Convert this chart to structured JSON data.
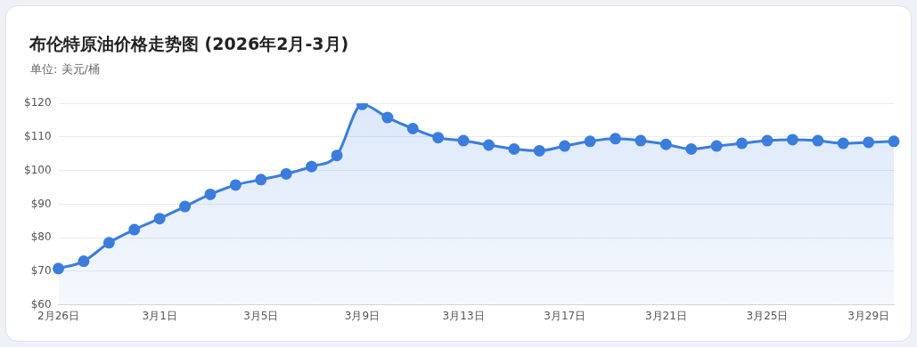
{
  "chart_data": {
    "type": "area",
    "title": "布伦特原油价格走势图 (2026年2月-3月)",
    "subtitle": "单位: 美元/桶",
    "categories": [
      "2月26日",
      null,
      null,
      null,
      "3月1日",
      null,
      null,
      null,
      "3月5日",
      null,
      null,
      null,
      "3月9日",
      null,
      null,
      null,
      "3月13日",
      null,
      null,
      null,
      "3月17日",
      null,
      null,
      null,
      "3月21日",
      null,
      null,
      null,
      "3月25日",
      null,
      null,
      null,
      "3月29日",
      null
    ],
    "series": [
      {
        "color": "#3b7ddd",
        "values": [
          70.8,
          73.0,
          78.5,
          82.4,
          85.7,
          89.3,
          92.9,
          95.7,
          97.3,
          99.0,
          101.2,
          104.5,
          119.7,
          115.8,
          112.5,
          109.8,
          108.9,
          107.6,
          106.4,
          105.9,
          107.3,
          108.7,
          109.5,
          108.9,
          107.8,
          106.4,
          107.3,
          108.1,
          108.9,
          109.2,
          108.9,
          108.1,
          108.4,
          108.7
        ]
      }
    ],
    "ylim": [
      60,
      120
    ],
    "yticks": [
      {
        "value": 60,
        "label": "$60"
      },
      {
        "value": 70,
        "label": "$70"
      },
      {
        "value": 80,
        "label": "$80"
      },
      {
        "value": 90,
        "label": "$90"
      },
      {
        "value": 100,
        "label": "$100"
      },
      {
        "value": 110,
        "label": "$110"
      },
      {
        "value": 120,
        "label": "$120"
      }
    ],
    "grid": "y",
    "legend": false,
    "marker": "circle",
    "line_style": "solid"
  }
}
